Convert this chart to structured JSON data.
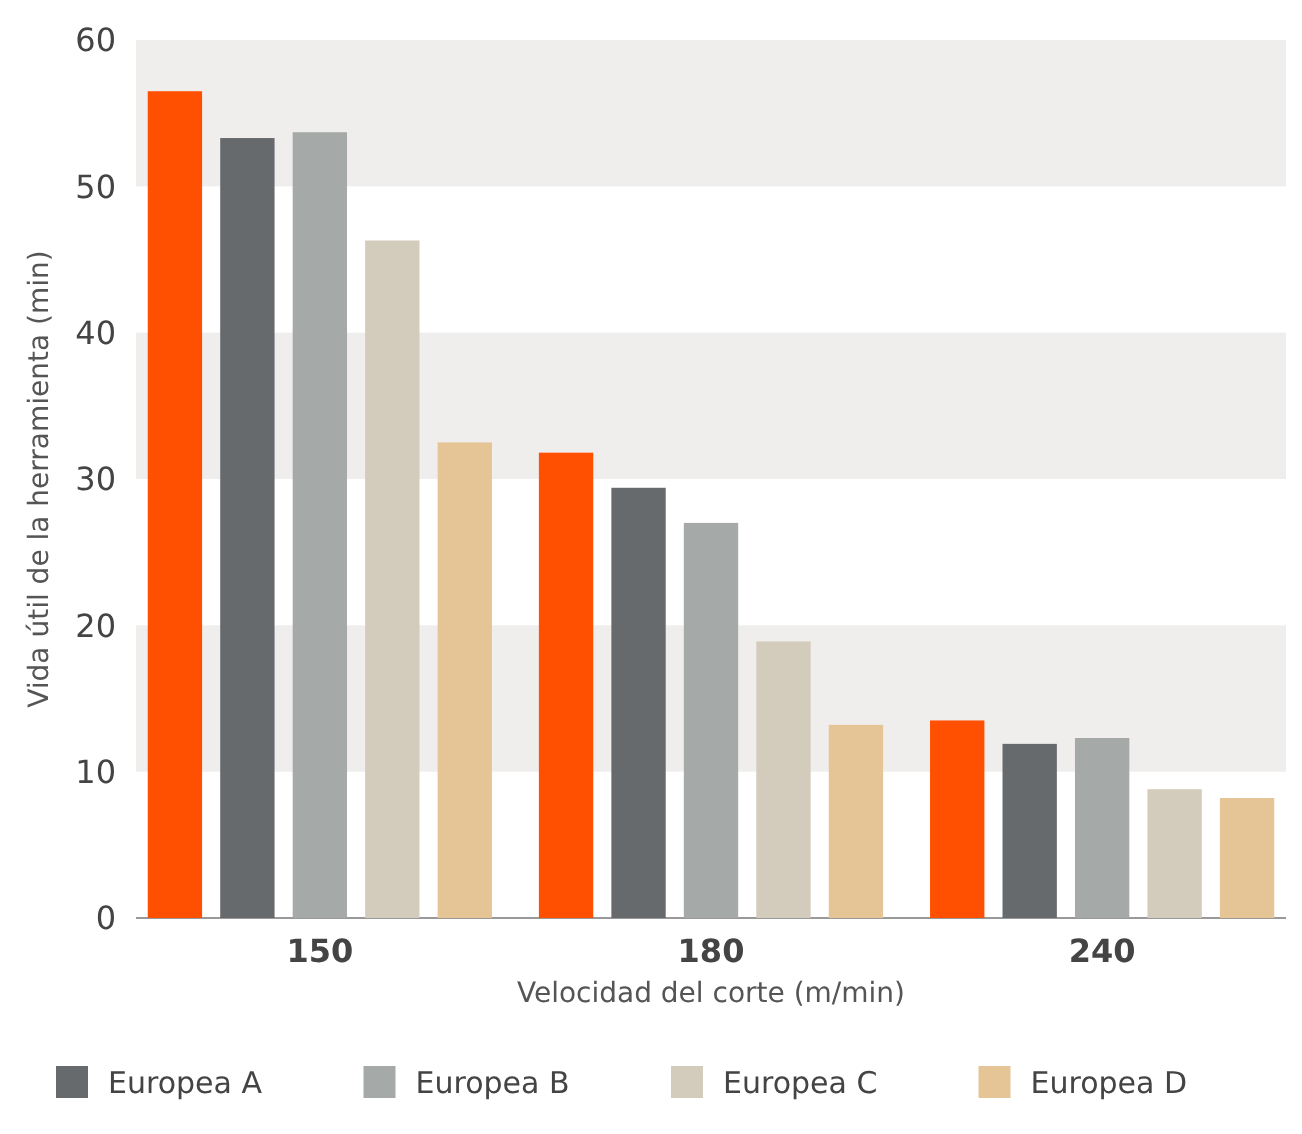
{
  "chart_data": {
    "type": "bar",
    "xlabel": "Velocidad del corte (m/min)",
    "ylabel": "Vida útil de la herramienta (min)",
    "categories": [
      "150",
      "180",
      "240"
    ],
    "series": [
      {
        "color": "#ff4f00",
        "values": [
          56.5,
          31.8,
          13.5
        ]
      },
      {
        "name": "Europea A",
        "color": "#676a6d",
        "values": [
          53.3,
          29.4,
          11.9
        ]
      },
      {
        "name": "Europea B",
        "color": "#a5aaa9",
        "values": [
          53.7,
          27.0,
          12.3
        ]
      },
      {
        "name": "Europea C",
        "color": "#d3cbbb",
        "values": [
          46.3,
          18.9,
          8.8
        ]
      },
      {
        "name": "Europea D",
        "color": "#e5c595",
        "values": [
          32.5,
          13.2,
          8.2
        ]
      }
    ],
    "ylim": [
      0,
      60
    ],
    "yticks": [
      0,
      10,
      20,
      30,
      40,
      50,
      60
    ],
    "bands": [
      {
        "axis": "y",
        "from": 10,
        "to": 20,
        "color": "#f0eeec"
      },
      {
        "axis": "y",
        "from": 30,
        "to": 40,
        "color": "#f0eeec"
      },
      {
        "axis": "y",
        "from": 50,
        "to": 60,
        "color": "#f0eeec"
      }
    ],
    "legend": "bottom"
  }
}
